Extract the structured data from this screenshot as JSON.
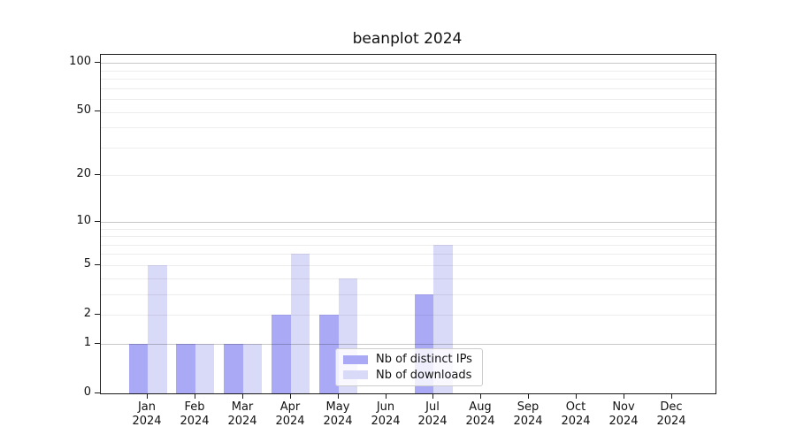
{
  "title": "beanplot 2024",
  "chart_data": {
    "type": "bar",
    "title": "beanplot 2024",
    "categories": [
      "Jan 2024",
      "Feb 2024",
      "Mar 2024",
      "Apr 2024",
      "May 2024",
      "Jun 2024",
      "Jul 2024",
      "Aug 2024",
      "Sep 2024",
      "Oct 2024",
      "Nov 2024",
      "Dec 2024"
    ],
    "series": [
      {
        "name": "Nb of distinct IPs",
        "color": "#a9a9f6",
        "values": [
          1,
          1,
          1,
          2,
          2,
          0,
          3,
          0,
          0,
          0,
          0,
          0
        ]
      },
      {
        "name": "Nb of downloads",
        "color": "#d9d9f8",
        "values": [
          5,
          1,
          1,
          6,
          4,
          0,
          7,
          0,
          0,
          0,
          0,
          0
        ]
      }
    ],
    "xlabel": "",
    "ylabel": "",
    "yscale": "log1p",
    "ylim": [
      0,
      112
    ],
    "y_tick_labels": [
      0,
      1,
      2,
      5,
      10,
      20,
      50,
      100
    ],
    "major_gridlines": [
      1,
      10,
      100
    ],
    "minor_gridlines": [
      2,
      3,
      4,
      5,
      6,
      7,
      8,
      9,
      20,
      30,
      40,
      50,
      60,
      70,
      80,
      90
    ],
    "grid": true,
    "legend_position": "lower-center-inside"
  },
  "legend": {
    "items": [
      {
        "label": "Nb of distinct IPs",
        "color": "#a9a9f6"
      },
      {
        "label": "Nb of downloads",
        "color": "#d9d9f8"
      }
    ]
  },
  "colors": {
    "background": "#ffffff",
    "spine": "#1a1a1a",
    "text": "#111111",
    "major_grid": "#cccccc",
    "minor_grid": "#ededed",
    "legend_border": "#cccccc"
  }
}
